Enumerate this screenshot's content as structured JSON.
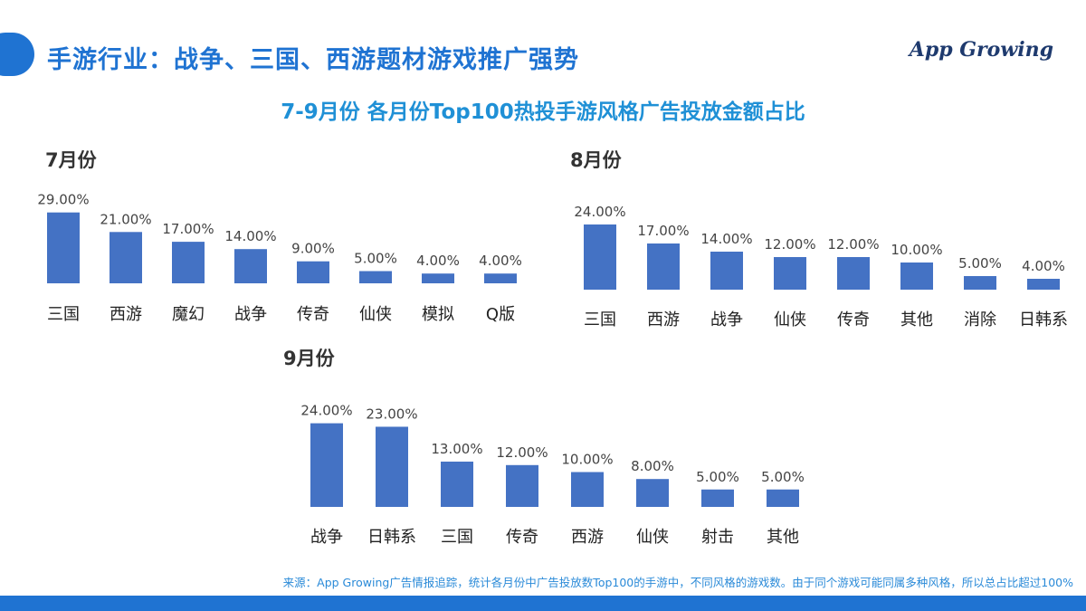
{
  "header": {
    "title": "手游行业：战争、三国、西游题材游戏推广强势",
    "subtitle": "7-9月份 各月份Top100热投手游风格广告投放金额占比",
    "logo_text": "App Growing"
  },
  "footnote": "来源：App Growing广告情报追踪，统计各月份中广告投放数Top100的手游中，不同风格的游戏数。由于同个游戏可能同属多种风格，所以总占比超过100%",
  "colors": {
    "accent": "#1f73d2",
    "bar": "#4472c4",
    "subtitle": "#1f90d6"
  },
  "chart_data": [
    {
      "type": "bar",
      "title": "7月份",
      "categories": [
        "三国",
        "西游",
        "魔幻",
        "战争",
        "传奇",
        "仙侠",
        "模拟",
        "Q版"
      ],
      "values": [
        29.0,
        21.0,
        17.0,
        14.0,
        9.0,
        5.0,
        4.0,
        4.0
      ],
      "labels": [
        "29.00%",
        "21.00%",
        "17.00%",
        "14.00%",
        "9.00%",
        "5.00%",
        "4.00%",
        "4.00%"
      ],
      "unit": "%"
    },
    {
      "type": "bar",
      "title": "8月份",
      "categories": [
        "三国",
        "西游",
        "战争",
        "仙侠",
        "传奇",
        "其他",
        "消除",
        "日韩系"
      ],
      "values": [
        24.0,
        17.0,
        14.0,
        12.0,
        12.0,
        10.0,
        5.0,
        4.0
      ],
      "labels": [
        "24.00%",
        "17.00%",
        "14.00%",
        "12.00%",
        "12.00%",
        "10.00%",
        "5.00%",
        "4.00%"
      ],
      "unit": "%"
    },
    {
      "type": "bar",
      "title": "9月份",
      "categories": [
        "战争",
        "日韩系",
        "三国",
        "传奇",
        "西游",
        "仙侠",
        "射击",
        "其他"
      ],
      "values": [
        24.0,
        23.0,
        13.0,
        12.0,
        10.0,
        8.0,
        5.0,
        5.0
      ],
      "labels": [
        "24.00%",
        "23.00%",
        "13.00%",
        "12.00%",
        "10.00%",
        "8.00%",
        "5.00%",
        "5.00%"
      ],
      "unit": "%"
    }
  ]
}
